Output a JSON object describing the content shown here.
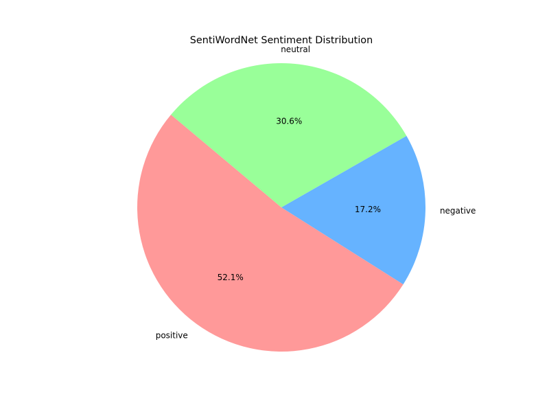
{
  "chart_data": {
    "type": "pie",
    "title": "SentiWordNet Sentiment Distribution",
    "start_angle_deg": 140,
    "direction": "counterclockwise",
    "slices": [
      {
        "label": "positive",
        "value": 52.1,
        "pct_label": "52.1%",
        "color": "#ff9999"
      },
      {
        "label": "negative",
        "value": 17.2,
        "pct_label": "17.2%",
        "color": "#66b3ff"
      },
      {
        "label": "neutral",
        "value": 30.6,
        "pct_label": "30.6%",
        "color": "#99ff99"
      }
    ]
  }
}
